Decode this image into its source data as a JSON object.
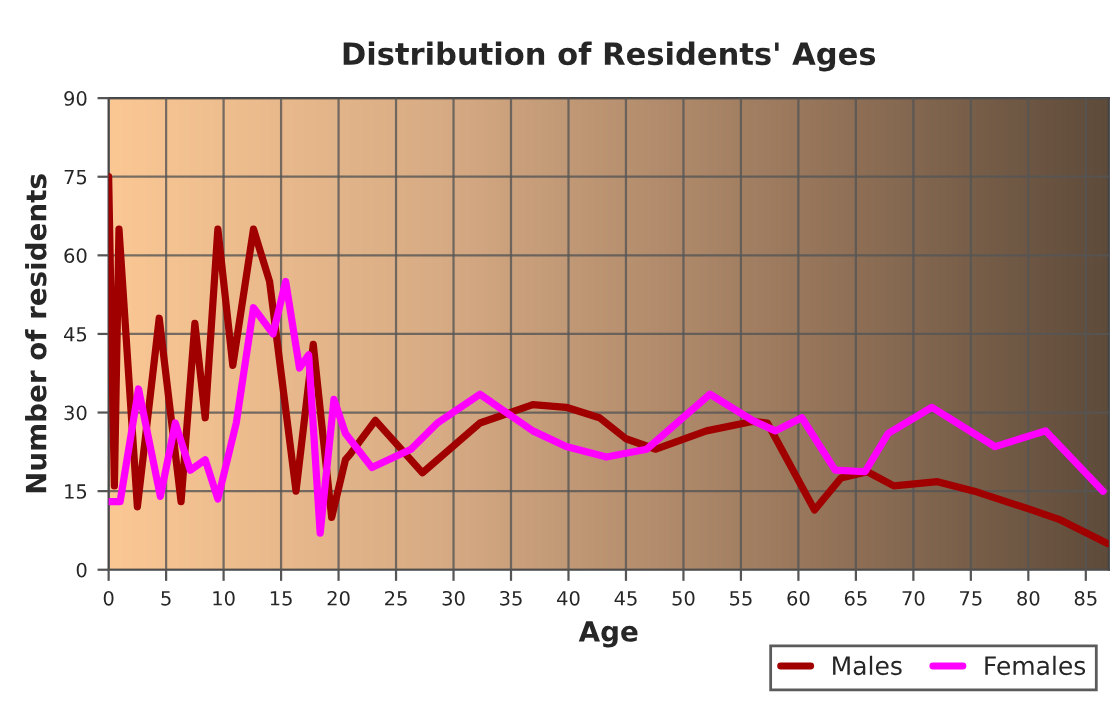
{
  "chart_data": {
    "type": "line",
    "title": "Distribution of Residents' Ages",
    "xlabel": "Age",
    "ylabel": "Number of residents",
    "xlim": [
      0,
      87
    ],
    "xticks": [
      0,
      5,
      10,
      15,
      20,
      25,
      30,
      35,
      40,
      45,
      50,
      55,
      60,
      65,
      70,
      75,
      80,
      85
    ],
    "ylim": [
      0,
      90
    ],
    "yticks": [
      0,
      15,
      30,
      45,
      60,
      75,
      90
    ],
    "grid": true,
    "legend": "bottom right",
    "marker": "none",
    "line_style": "solid",
    "series": [
      {
        "name": "Males",
        "color": "#a00000",
        "x": [
          0,
          0.5,
          0.9,
          2.5,
          4.4,
          6.3,
          7.5,
          8.4,
          9.5,
          10.8,
          12.6,
          14,
          16.3,
          17.8,
          19.4,
          20.6,
          21,
          23.2,
          27.3,
          32.3,
          36.9,
          39.8,
          42.7,
          45,
          47.6,
          52,
          56,
          57.3,
          61.4,
          63.7,
          66,
          68.3,
          72.1,
          75.3,
          79.9,
          82.8,
          86.9
        ],
        "values": [
          75,
          16,
          65,
          12,
          48,
          13,
          47,
          29,
          65,
          39,
          65,
          55,
          15,
          43,
          10,
          21,
          22,
          28.5,
          18.5,
          28,
          31.5,
          31,
          29,
          25,
          23,
          26.5,
          28.3,
          28,
          11.4,
          17.5,
          18.7,
          16,
          16.8,
          15,
          11.7,
          9.5,
          5
        ]
      },
      {
        "name": "Females",
        "color": "#ff00ff",
        "x": [
          0,
          1,
          2.6,
          4.5,
          5.8,
          7.1,
          8.4,
          9.5,
          11.1,
          12.6,
          14.3,
          15.4,
          16.6,
          17.4,
          18.4,
          19.6,
          20.6,
          22.9,
          26.3,
          28.6,
          32.3,
          36.9,
          39.8,
          43.3,
          46.8,
          52.3,
          56,
          58,
          60.3,
          63.2,
          65.8,
          67.8,
          71.6,
          77.1,
          81.5,
          86.5
        ],
        "values": [
          13,
          13,
          34.5,
          14,
          28,
          19,
          21,
          13.5,
          28,
          50,
          45,
          55,
          38.5,
          41,
          7,
          32.5,
          26,
          19.5,
          23,
          28,
          33.5,
          26.5,
          23.5,
          21.5,
          23,
          33.5,
          28.5,
          26.5,
          29,
          19,
          18.7,
          26,
          31,
          23.5,
          26.5,
          15
        ]
      }
    ]
  }
}
